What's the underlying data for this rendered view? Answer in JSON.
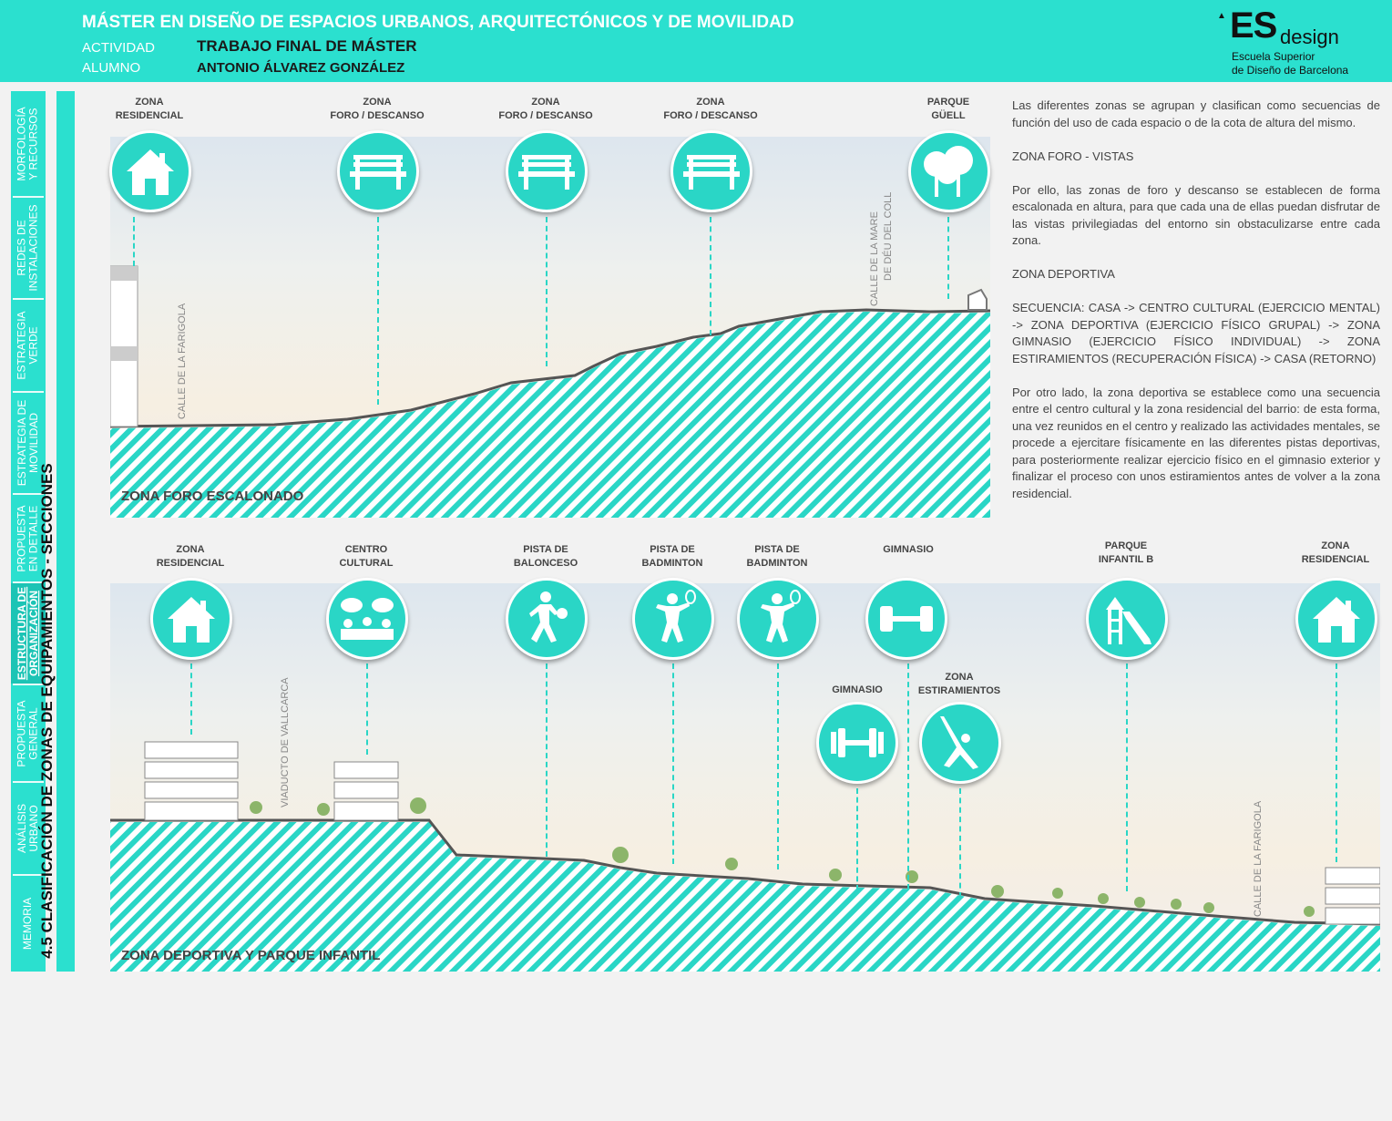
{
  "header": {
    "title": "MÁSTER EN DISEÑO DE ESPACIOS URBANOS, ARQUITECTÓNICOS Y DE MOVILIDAD",
    "activity_label": "ACTIVIDAD",
    "activity_value": "TRABAJO FINAL DE MÁSTER",
    "student_label": "ALUMNO",
    "student_value": "ANTONIO ÁLVAREZ GONZÁLEZ"
  },
  "logo": {
    "es": "ES",
    "design": "design",
    "line1": "Escuela Superior",
    "line2": "de Diseño de Barcelona"
  },
  "sidenav": [
    {
      "label1": "MORFOLOGÍA",
      "label2": "Y RECURSOS"
    },
    {
      "label1": "REDES DE",
      "label2": "INSTALACIONES"
    },
    {
      "label1": "ESTRATEGIA",
      "label2": "VERDE"
    },
    {
      "label1": "ESTRATEGIA DE",
      "label2": "MOVILIDAD"
    },
    {
      "label1": "PROPUESTA",
      "label2": "EN DETALLE"
    },
    {
      "label1": "ESTRUCTURA DE",
      "label2": "ORGANIZACIÓN"
    },
    {
      "label1": "PROPUESTA",
      "label2": "GENERAL"
    },
    {
      "label1": "ANÁLISIS",
      "label2": "URBANO"
    },
    {
      "label1": "MEMORIA",
      "label2": ""
    }
  ],
  "section_title": "4.5 CLASIFICACIÓN DE ZONAS DE EQUIPAMIENTOS - SECCIONES",
  "section1": {
    "name": "ZONA FORO ESCALONADO",
    "street_left": "CALLE DE LA FARIGOLA",
    "street_right_1": "CALLE DE LA MARE",
    "street_right_2": "DE DÉU DEL COLL",
    "icons": [
      {
        "line1": "ZONA",
        "line2": "RESIDENCIAL",
        "icon": "house-icon"
      },
      {
        "line1": "ZONA",
        "line2": "FORO / DESCANSO",
        "icon": "bench-icon"
      },
      {
        "line1": "ZONA",
        "line2": "FORO / DESCANSO",
        "icon": "bench-icon"
      },
      {
        "line1": "ZONA",
        "line2": "FORO / DESCANSO",
        "icon": "bench-icon"
      },
      {
        "line1": "PARQUE",
        "line2": "GÜELL",
        "icon": "trees-icon"
      }
    ]
  },
  "section2": {
    "name": "ZONA DEPORTIVA Y PARQUE INFANTIL",
    "street_left": "VIADUCTO DE VALLCARCA",
    "street_right": "CALLE DE LA FARIGOLA",
    "icons": [
      {
        "line1": "ZONA",
        "line2": "RESIDENCIAL",
        "icon": "house-icon"
      },
      {
        "line1": "CENTRO",
        "line2": "CULTURAL",
        "icon": "people-talking-icon"
      },
      {
        "line1": "PISTA DE",
        "line2": "BALONCESO",
        "icon": "basketball-player-icon"
      },
      {
        "line1": "PISTA DE",
        "line2": "BADMINTON",
        "icon": "badminton-player-icon"
      },
      {
        "line1": "PISTA DE",
        "line2": "BADMINTON",
        "icon": "badminton-player-icon"
      },
      {
        "line1": "GIMNASIO",
        "line2": "",
        "icon": "dumbbell-icon"
      },
      {
        "line1": "PARQUE",
        "line2": "INFANTIL B",
        "icon": "slide-icon"
      },
      {
        "line1": "ZONA",
        "line2": "RESIDENCIAL",
        "icon": "house-icon"
      },
      {
        "line1": "GIMNASIO",
        "line2": "",
        "icon": "dumbbell-icon"
      },
      {
        "line1": "ZONA",
        "line2": "ESTIRAMIENTOS",
        "icon": "stretching-icon"
      }
    ]
  },
  "text": {
    "p1": "Las diferentes zonas se agrupan y clasifican como secuencias de función del uso de cada espacio o de la cota de altura del mismo.",
    "p2": "ZONA FORO - VISTAS",
    "p3": "Por ello, las zonas de foro y descanso se establecen de forma escalonada en altura, para que cada una de ellas puedan disfrutar de las vistas privilegiadas del entorno sin obstaculizarse entre cada zona.",
    "p4": "ZONA DEPORTIVA",
    "p5": "SECUENCIA: CASA -> CENTRO CULTURAL (EJERCICIO MENTAL) -> ZONA DEPORTIVA (EJERCICIO FÍSICO GRUPAL) -> ZONA GIMNASIO (EJERCICIO FÍSICO INDIVIDUAL) -> ZONA ESTIRAMIENTOS (RECUPERACIÓN FÍSICA) -> CASA (RETORNO)",
    "p6": "Por otro lado, la zona deportiva se establece como una secuencia entre el centro cultural y la zona residencial del barrio: de esta forma, una vez reunidos en el centro y realizado las actividades mentales, se procede a ejercitare físicamente en las diferentes pistas deportivas, para posteriormente realizar ejercicio físico en el gimnasio exterior y finalizar el proceso con unos estiramientos antes de volver a la zona residencial."
  },
  "colors": {
    "accent": "#2be0cf",
    "ground": "#2ad6c6"
  }
}
